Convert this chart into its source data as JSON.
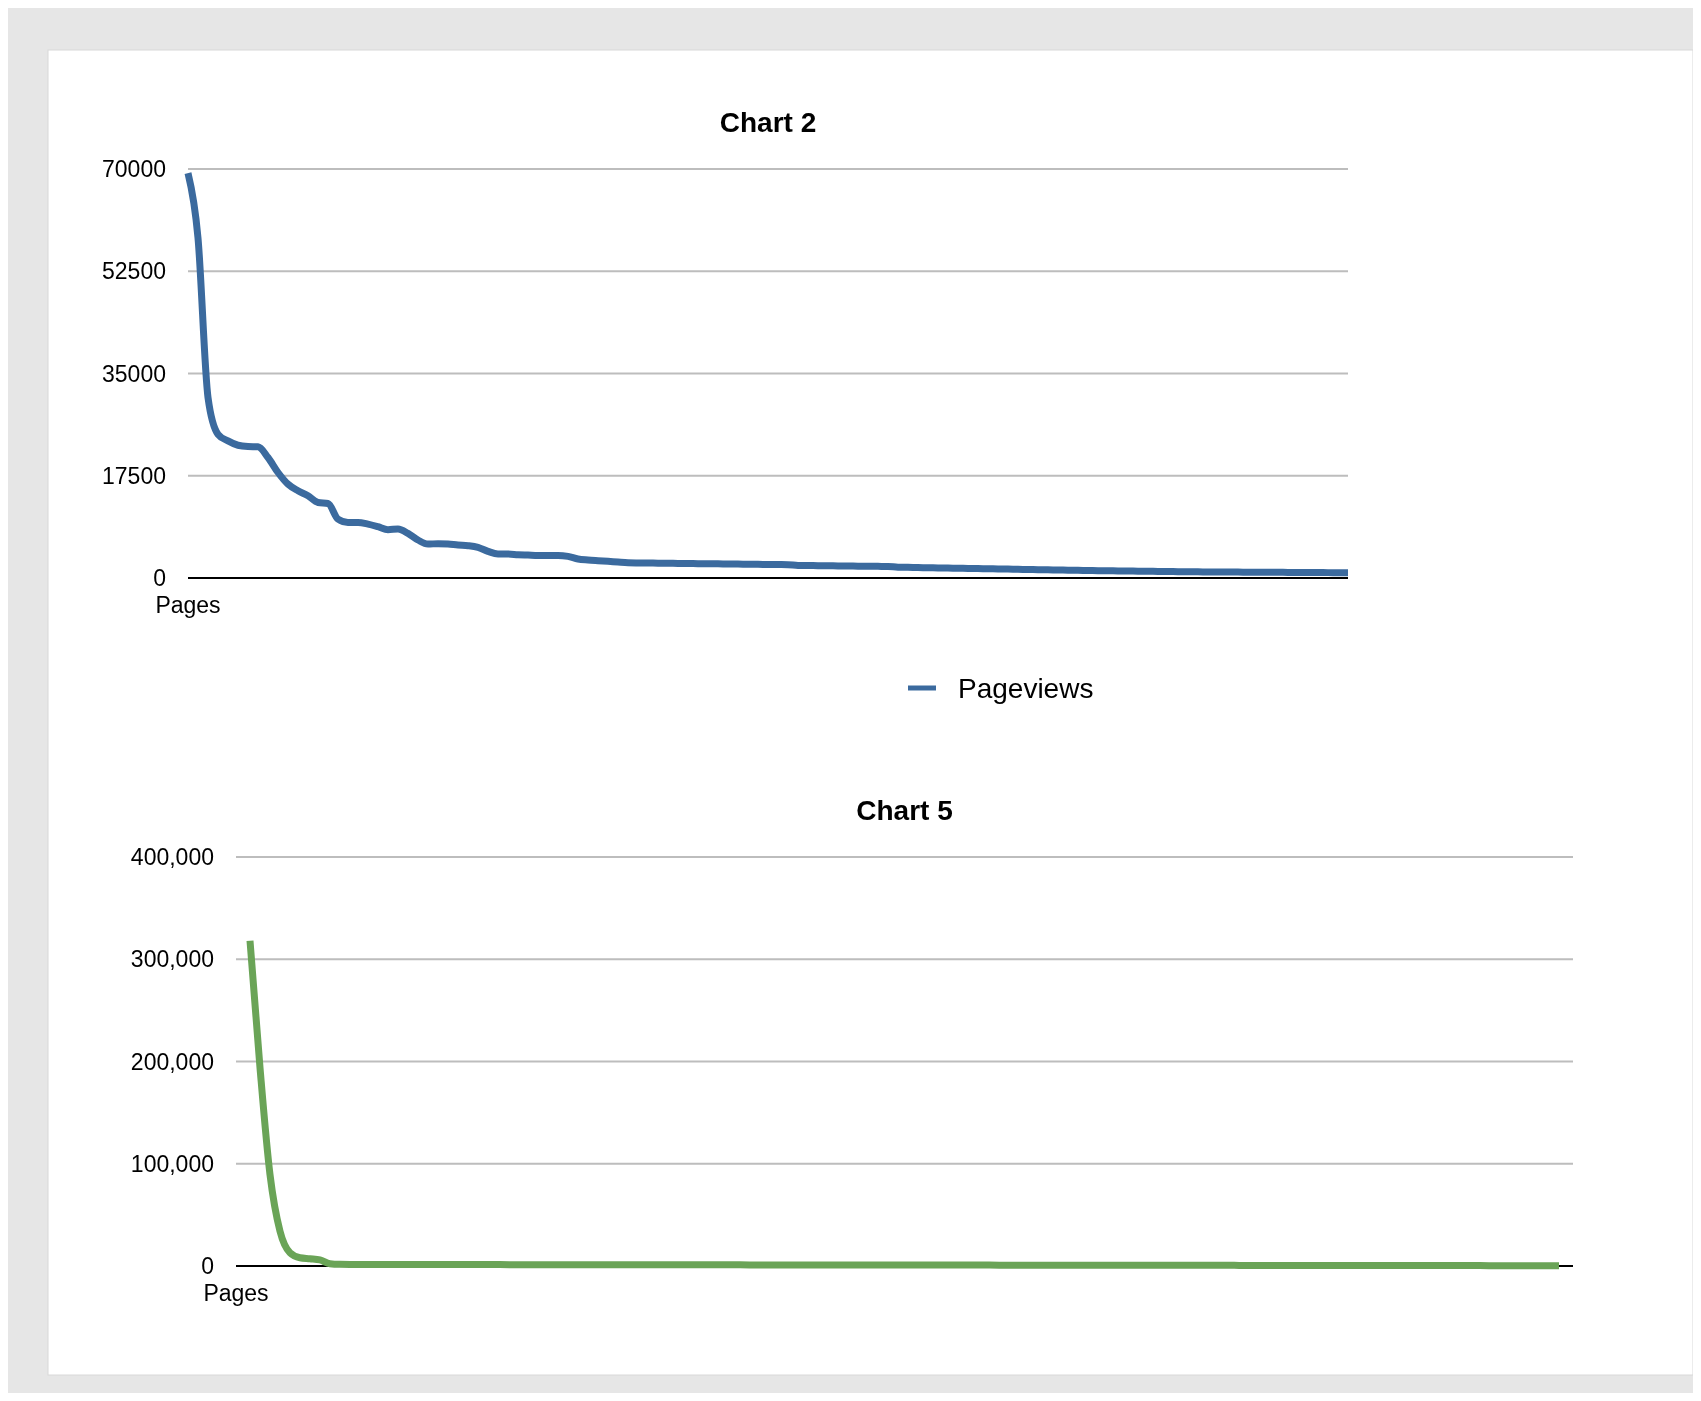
{
  "chart_data": [
    {
      "type": "line",
      "title": "Chart 2",
      "xlabel": "Pages",
      "categories": [
        null,
        null,
        null,
        null,
        null,
        null,
        null,
        null,
        null,
        null,
        null,
        null,
        null,
        null,
        null,
        null,
        null,
        null,
        null,
        null,
        null,
        null,
        null,
        null,
        null,
        null,
        null,
        null,
        null,
        null,
        null,
        null,
        null,
        null,
        null,
        null,
        null,
        null,
        null,
        null,
        null,
        null,
        null,
        null,
        null,
        null,
        null,
        null,
        null,
        null,
        null,
        null,
        null,
        null,
        null,
        null,
        null,
        null,
        null,
        null,
        null,
        null,
        null,
        null,
        null,
        null,
        null,
        null,
        null,
        null,
        null,
        null,
        null,
        null,
        null,
        null,
        null,
        null,
        null,
        null,
        null,
        null,
        null,
        null,
        null,
        null,
        null,
        null,
        null,
        null,
        null,
        null,
        null,
        null,
        null,
        null,
        null,
        null,
        null,
        null,
        null,
        null,
        null,
        null,
        null,
        null,
        null,
        null,
        null,
        null,
        null,
        null,
        null,
        null,
        null,
        null,
        null
      ],
      "series": [
        {
          "name": "Pageviews",
          "color": "#3b6a9e",
          "values": [
            69300,
            58200,
            30900,
            24600,
            23470,
            22720,
            22500,
            22450,
            20620,
            18060,
            16060,
            14930,
            14080,
            12930,
            12760,
            10080,
            9520,
            9520,
            9230,
            8780,
            8270,
            8380,
            7640,
            6500,
            5810,
            5870,
            5810,
            5640,
            5530,
            5250,
            4560,
            4100,
            4100,
            3990,
            3930,
            3870,
            3870,
            3870,
            3700,
            3250,
            3080,
            2960,
            2850,
            2730,
            2620,
            2580,
            2560,
            2540,
            2520,
            2500,
            2480,
            2460,
            2440,
            2420,
            2400,
            2380,
            2360,
            2340,
            2320,
            2300,
            2280,
            2150,
            2130,
            2110,
            2090,
            2070,
            2050,
            2030,
            2010,
            1990,
            1970,
            1850,
            1820,
            1790,
            1760,
            1730,
            1700,
            1670,
            1640,
            1610,
            1580,
            1550,
            1520,
            1490,
            1460,
            1430,
            1400,
            1370,
            1340,
            1310,
            1280,
            1250,
            1230,
            1210,
            1190,
            1170,
            1150,
            1130,
            1110,
            1090,
            1070,
            1050,
            1040,
            1030,
            1020,
            1010,
            1000,
            990,
            980,
            970,
            960,
            950,
            940,
            930,
            920,
            910,
            900
          ]
        }
      ],
      "ylim": [
        0,
        70000
      ],
      "yticks": [
        0,
        17500,
        35000,
        52500,
        70000
      ],
      "grid": "y",
      "legend": "bottom",
      "tick_labels": "y"
    },
    {
      "type": "line",
      "title": "Chart 5",
      "xlabel": "Pages",
      "categories": [
        null,
        null,
        null,
        null,
        null,
        null,
        null,
        null,
        null,
        null,
        null,
        null,
        null,
        null,
        null,
        null,
        null,
        null,
        null,
        null,
        null,
        null,
        null,
        null,
        null,
        null,
        null,
        null,
        null,
        null,
        null,
        null,
        null,
        null,
        null,
        null,
        null,
        null,
        null,
        null,
        null,
        null,
        null,
        null,
        null,
        null,
        null,
        null,
        null,
        null,
        null,
        null,
        null,
        null,
        null,
        null,
        null,
        null,
        null,
        null,
        null,
        null,
        null,
        null,
        null,
        null,
        null,
        null,
        null,
        null,
        null,
        null,
        null,
        null,
        null,
        null,
        null,
        null,
        null,
        null,
        null,
        null,
        null,
        null,
        null,
        null,
        null,
        null,
        null,
        null,
        null,
        null,
        null,
        null,
        null,
        null,
        null,
        null,
        null,
        null,
        null,
        null,
        null,
        null,
        null,
        null,
        null,
        null,
        null,
        null,
        null,
        null,
        null,
        null,
        null,
        null,
        null,
        null,
        null,
        null,
        null,
        null,
        null,
        null,
        null,
        null,
        null,
        null,
        null,
        null,
        null,
        null
      ],
      "series": [
        {
          "color": "#6aa457",
          "values": [
            318000,
            194000,
            89500,
            34200,
            13000,
            8100,
            7100,
            5900,
            2200,
            1600,
            1500,
            1490,
            1480,
            1470,
            1460,
            1450,
            1440,
            1430,
            1420,
            1410,
            1400,
            1390,
            1380,
            1370,
            1360,
            1350,
            1340,
            1330,
            1320,
            1310,
            1300,
            1290,
            1280,
            1270,
            1260,
            1250,
            1240,
            1230,
            1220,
            1210,
            1200,
            1190,
            1180,
            1170,
            1160,
            1150,
            1140,
            1130,
            1120,
            1110,
            1100,
            1090,
            1080,
            1070,
            1060,
            1050,
            1040,
            1030,
            1020,
            1010,
            1000,
            990,
            980,
            970,
            960,
            950,
            940,
            930,
            920,
            910,
            900,
            890,
            880,
            870,
            860,
            850,
            840,
            830,
            820,
            810,
            800,
            790,
            780,
            770,
            760,
            750,
            740,
            730,
            720,
            710,
            700,
            690,
            680,
            670,
            660,
            650,
            640,
            630,
            620,
            610,
            600,
            590,
            580,
            570,
            560,
            550,
            540,
            530,
            520,
            510,
            500,
            490,
            480,
            470,
            460,
            450,
            440,
            430,
            420,
            410,
            400,
            390,
            380,
            370,
            360,
            350,
            340,
            330,
            320,
            310,
            300,
            290
          ]
        }
      ],
      "ylim": [
        0,
        400000
      ],
      "yticks": [
        {
          "value": 0,
          "label": "0"
        },
        {
          "value": 100000,
          "label": "100,000"
        },
        {
          "value": 200000,
          "label": "200,000"
        },
        {
          "value": 300000,
          "label": "300,000"
        },
        {
          "value": 400000,
          "label": "400,000"
        }
      ],
      "grid": "y",
      "tick_labels": "y"
    }
  ]
}
